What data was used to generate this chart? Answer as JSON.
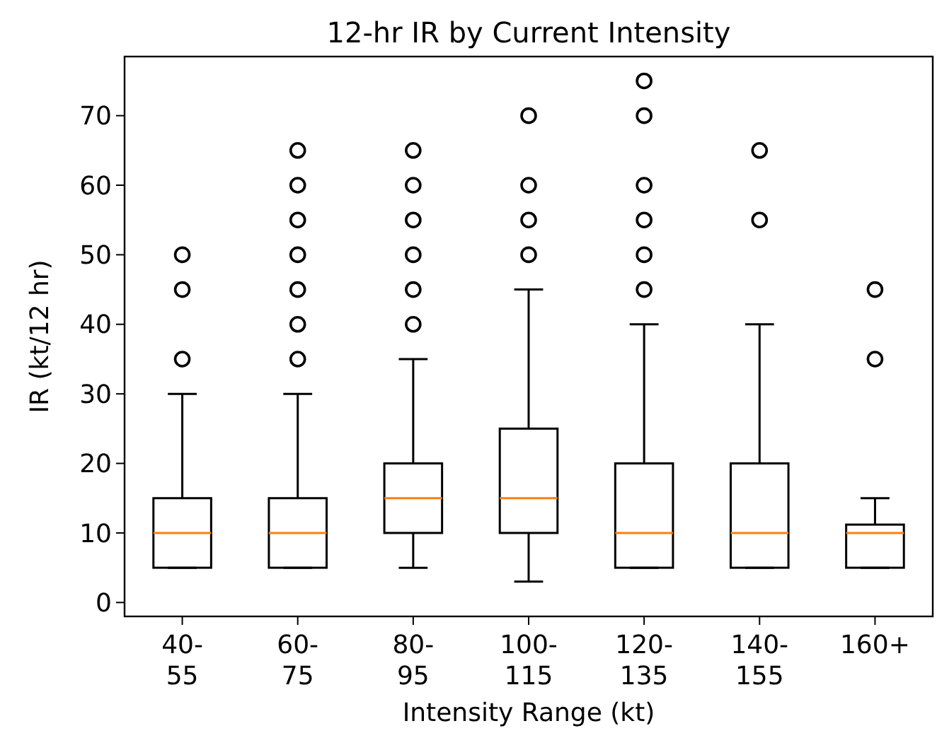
{
  "chart_data": {
    "type": "box",
    "title": "12-hr IR by Current Intensity",
    "xlabel": "Intensity Range (kt)",
    "ylabel": "IR (kt/12 hr)",
    "categories": [
      "40-55",
      "60-75",
      "80-95",
      "100-115",
      "120-135",
      "140-155",
      "160+"
    ],
    "ylim": [
      -2,
      78.5
    ],
    "yticks": [
      0,
      10,
      20,
      30,
      40,
      50,
      60,
      70
    ],
    "grid": false,
    "marker": "circle",
    "boxes": [
      {
        "low": 5,
        "q1": 5,
        "median": 10,
        "q3": 15,
        "high": 30,
        "outliers": [
          35,
          45,
          50
        ]
      },
      {
        "low": 5,
        "q1": 5,
        "median": 10,
        "q3": 15,
        "high": 30,
        "outliers": [
          35,
          40,
          45,
          50,
          55,
          60,
          65
        ]
      },
      {
        "low": 5,
        "q1": 10,
        "median": 15,
        "q3": 20,
        "high": 35,
        "outliers": [
          40,
          45,
          50,
          55,
          60,
          65
        ]
      },
      {
        "low": 3,
        "q1": 10,
        "median": 15,
        "q3": 25,
        "high": 45,
        "outliers": [
          50,
          55,
          60,
          70
        ]
      },
      {
        "low": 5,
        "q1": 5,
        "median": 10,
        "q3": 20,
        "high": 40,
        "outliers": [
          45,
          50,
          55,
          60,
          70,
          75
        ]
      },
      {
        "low": 5,
        "q1": 5,
        "median": 10,
        "q3": 20,
        "high": 40,
        "outliers": [
          55,
          65
        ]
      },
      {
        "low": 5,
        "q1": 5,
        "median": 10,
        "q3": 11.2,
        "high": 15,
        "outliers": [
          35,
          45
        ]
      }
    ]
  }
}
